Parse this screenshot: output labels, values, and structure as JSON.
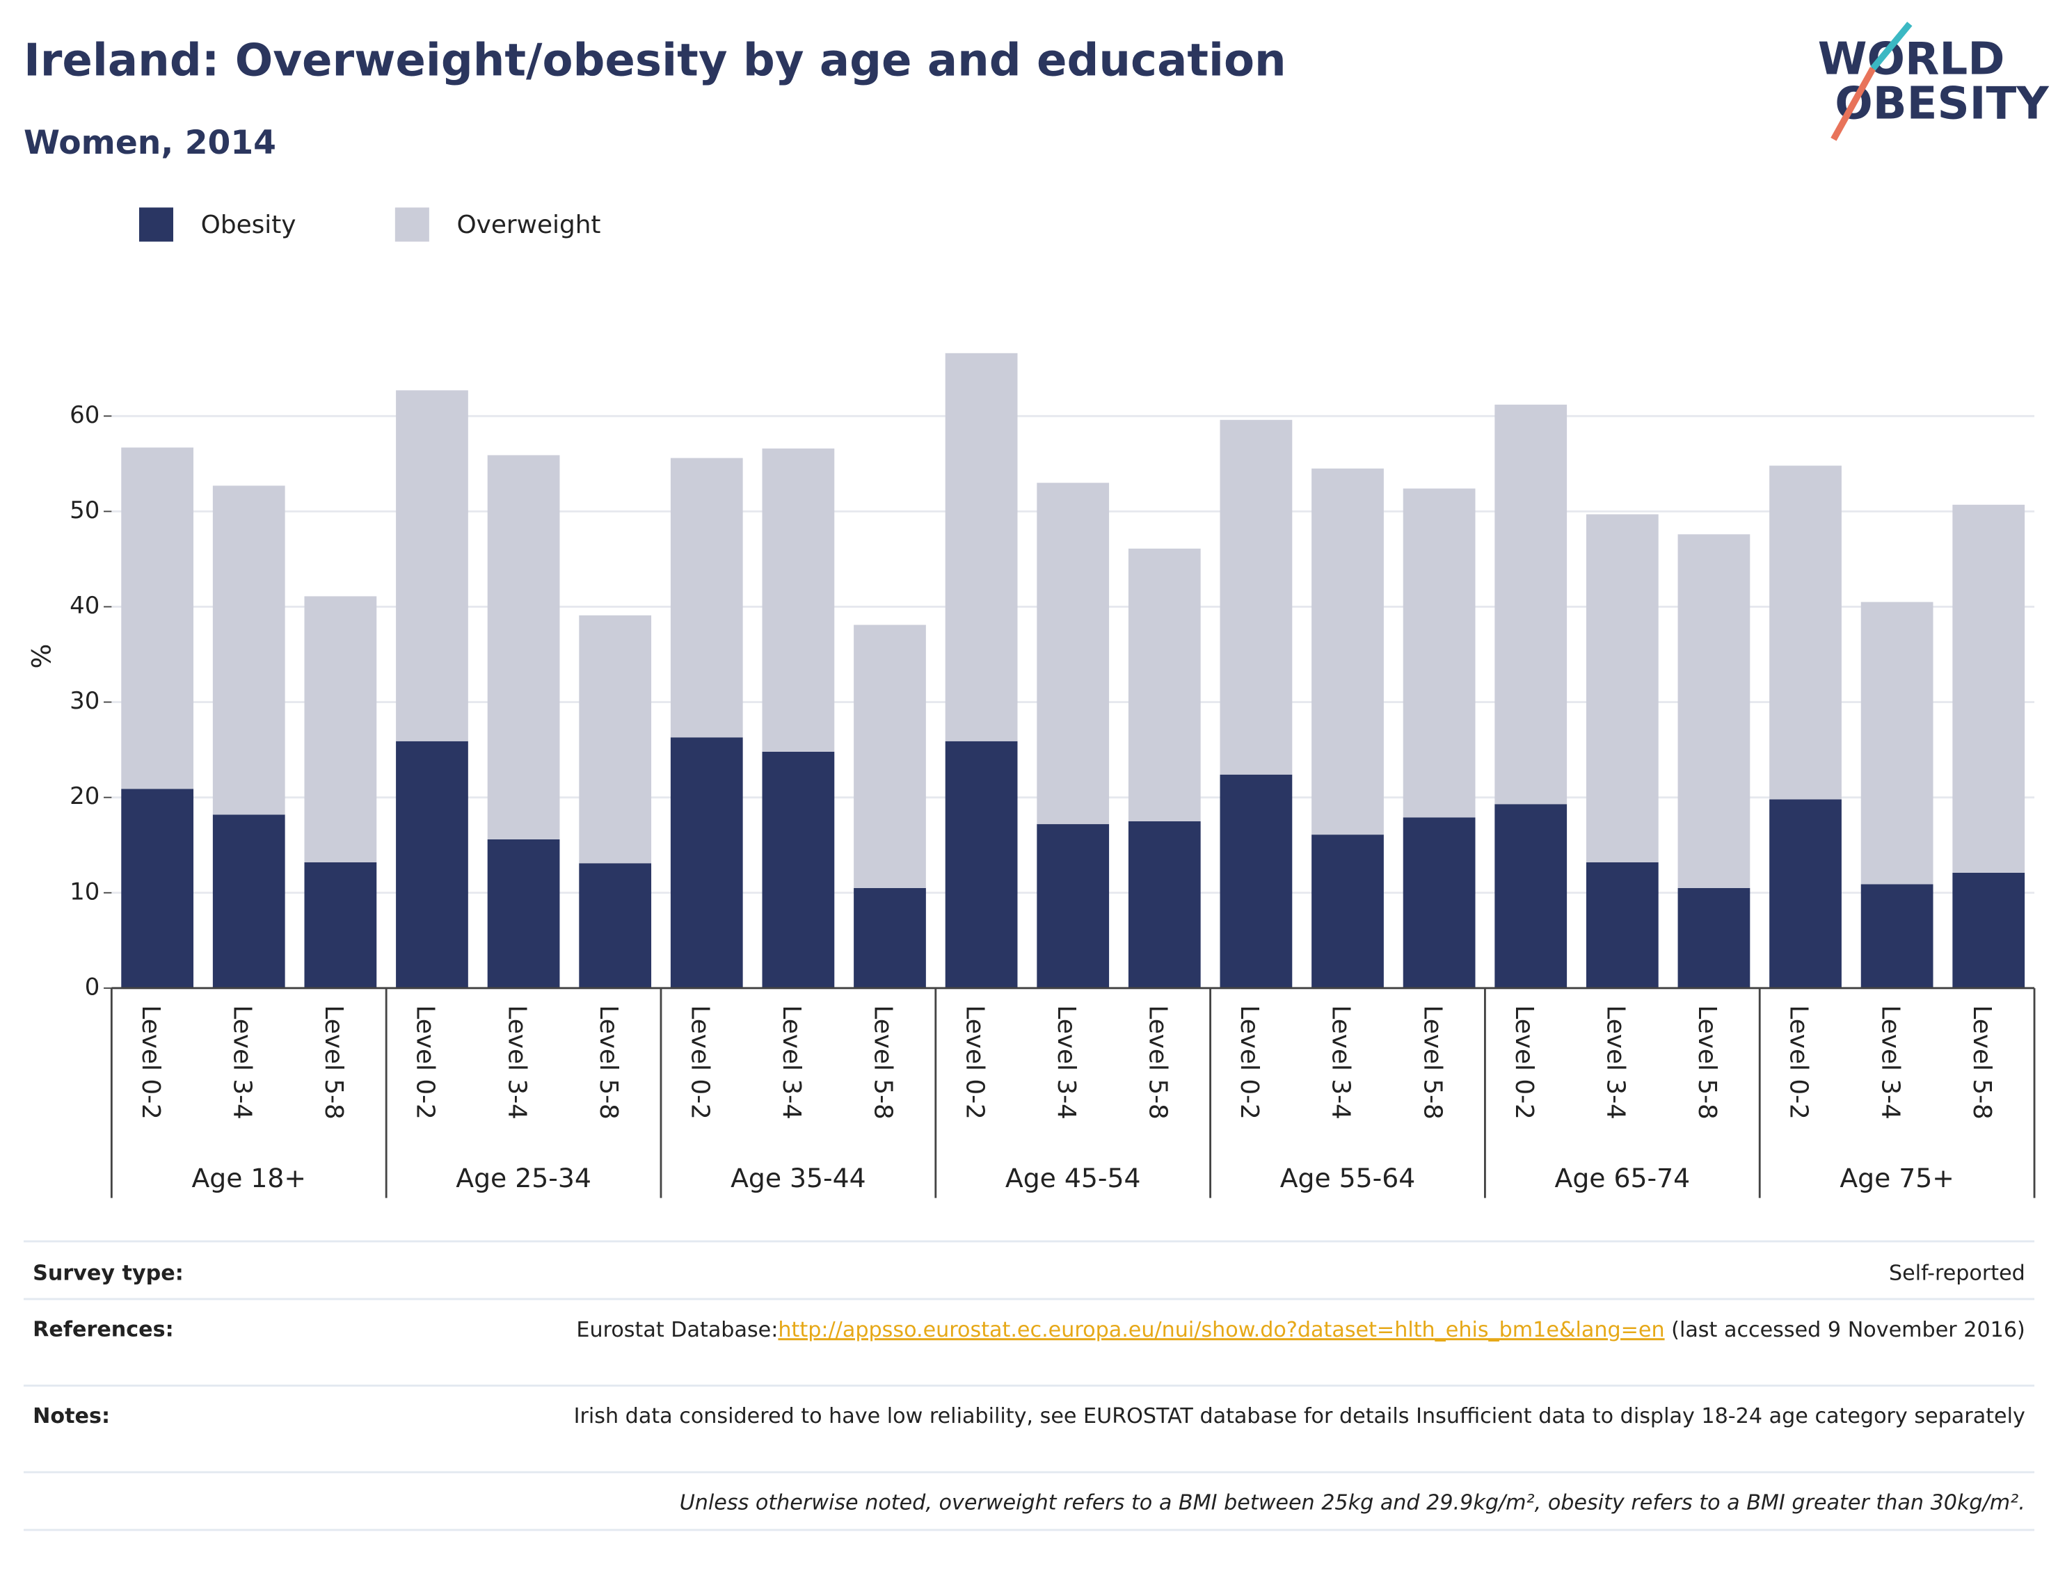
{
  "chart_data": {
    "type": "stacked_bar",
    "title": "Ireland: Overweight/obesity by age and education",
    "subtitle": "Women, 2014",
    "logo": [
      "WORLD",
      "OBESITY"
    ],
    "ylabel": "%",
    "categories": [
      "Level 0-2",
      "Level 3-4",
      "Level 5-8",
      "Level 0-2",
      "Level 3-4",
      "Level 5-8",
      "Level 0-2",
      "Level 3-4",
      "Level 5-8",
      "Level 0-2",
      "Level 3-4",
      "Level 5-8",
      "Level 0-2",
      "Level 3-4",
      "Level 5-8",
      "Level 0-2",
      "Level 3-4",
      "Level 5-8",
      "Level 0-2",
      "Level 3-4",
      "Level 5-8"
    ],
    "groups": [
      "Age 18+",
      "Age 25-34",
      "Age 35-44",
      "Age 45-54",
      "Age 55-64",
      "Age 65-74",
      "Age 75+"
    ],
    "series": [
      {
        "name": "Obesity",
        "color": "#2a3663",
        "values": [
          20.9,
          18.2,
          13.2,
          25.9,
          15.6,
          13.1,
          26.3,
          24.8,
          10.5,
          25.9,
          17.2,
          17.5,
          22.4,
          16.1,
          17.9,
          19.3,
          13.2,
          10.5,
          19.8,
          10.9,
          12.1
        ]
      },
      {
        "name": "Overweight",
        "color": "#cbcdd9",
        "values": [
          35.8,
          34.5,
          27.9,
          36.8,
          40.3,
          26.0,
          29.3,
          31.8,
          27.6,
          40.7,
          35.8,
          28.6,
          37.2,
          38.4,
          34.5,
          41.9,
          36.5,
          37.1,
          35.0,
          29.6,
          38.6
        ]
      }
    ],
    "ylim": [
      0,
      70
    ],
    "yticks": [
      0,
      10,
      20,
      30,
      40,
      50,
      60
    ],
    "grid": true,
    "legend": "top-left"
  },
  "footer": {
    "rows": [
      {
        "label": "Survey type:",
        "text": "Self-reported"
      },
      {
        "label": "References:",
        "prefix": "Eurostat Database:",
        "link": "http://appsso.eurostat.ec.europa.eu/nui/show.do?dataset=hlth_ehis_bm1e&lang=en",
        "suffix": " (last accessed 9 November 2016)"
      },
      {
        "label": "Notes:",
        "text": "Irish data considered to have low reliability, see EUROSTAT database for details Insufficient data to display 18-24 age category separately"
      }
    ],
    "definition": "Unless otherwise noted, overweight refers to a BMI between 25kg and 29.9kg/m², obesity refers to a BMI greater than 30kg/m²."
  }
}
